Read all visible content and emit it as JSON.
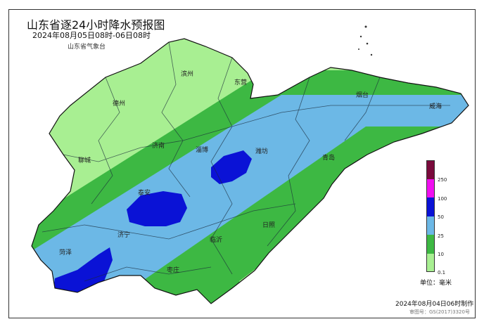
{
  "header": {
    "title": "山东省逐24小时降水预报图",
    "subtitle": "2024年08月05日08时-06日08时",
    "organization": "山东省气象台"
  },
  "cities": [
    {
      "name": "滨州"
    },
    {
      "name": "东营"
    },
    {
      "name": "德州"
    },
    {
      "name": "烟台"
    },
    {
      "name": "威海"
    },
    {
      "name": "济南"
    },
    {
      "name": "聊城"
    },
    {
      "name": "淄博"
    },
    {
      "name": "潍坊"
    },
    {
      "name": "青岛"
    },
    {
      "name": "泰安"
    },
    {
      "name": "济宁"
    },
    {
      "name": "日照"
    },
    {
      "name": "临沂"
    },
    {
      "name": "菏泽"
    },
    {
      "name": "枣庄"
    }
  ],
  "legend": {
    "unit": "单位：毫米",
    "levels": [
      {
        "label": "250",
        "color": "#7a0a3c"
      },
      {
        "label": "100",
        "color": "#f00ff0"
      },
      {
        "label": "50",
        "color": "#0a12d6"
      },
      {
        "label": "25",
        "color": "#6cb8e6"
      },
      {
        "label": "10",
        "color": "#3db843"
      },
      {
        "label": "0.1",
        "color": "#a8ef92"
      }
    ]
  },
  "footer": {
    "made": "2024年08月04日06时制作",
    "review_number": "审图号：GS(2017)3320号"
  }
}
